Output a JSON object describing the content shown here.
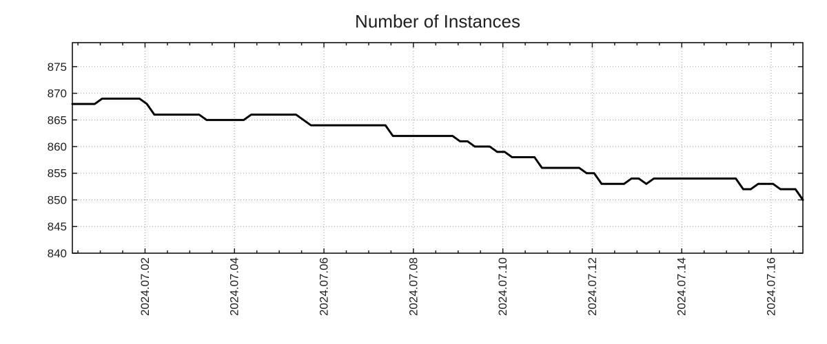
{
  "chart_data": {
    "type": "line",
    "title": "Number of Instances",
    "x_axis": {
      "epoch": "2024-06-30 00:00",
      "domain_days": [
        0.375,
        16.7083
      ],
      "major_ticks": [
        {
          "day": 2,
          "label": "2024.07.02"
        },
        {
          "day": 4,
          "label": "2024.07.04"
        },
        {
          "day": 6,
          "label": "2024.07.06"
        },
        {
          "day": 8,
          "label": "2024.07.08"
        },
        {
          "day": 10,
          "label": "2024.07.10"
        },
        {
          "day": 12,
          "label": "2024.07.12"
        },
        {
          "day": 14,
          "label": "2024.07.14"
        },
        {
          "day": 16,
          "label": "2024.07.16"
        }
      ],
      "minor_tick_step_days": 0.5,
      "labels_rotated_degrees": -90
    },
    "y_axis": {
      "ylim": [
        840,
        879.5
      ],
      "ticks": [
        840,
        845,
        850,
        855,
        860,
        865,
        870,
        875
      ]
    },
    "grid": {
      "style": "dotted",
      "vertical": true,
      "horizontal": true
    },
    "legend": "none",
    "series": [
      {
        "name": "instances",
        "color": "#000000",
        "line_width": 3,
        "points": [
          [
            "2024-06-30 09:00",
            868
          ],
          [
            "2024-06-30 21:00",
            868
          ],
          [
            "2024-07-01 01:00",
            869
          ],
          [
            "2024-07-01 21:00",
            869
          ],
          [
            "2024-07-02 01:00",
            868
          ],
          [
            "2024-07-02 05:00",
            866
          ],
          [
            "2024-07-03 05:00",
            866
          ],
          [
            "2024-07-03 09:00",
            865
          ],
          [
            "2024-07-04 05:00",
            865
          ],
          [
            "2024-07-04 09:00",
            866
          ],
          [
            "2024-07-05 09:00",
            866
          ],
          [
            "2024-07-05 13:00",
            865
          ],
          [
            "2024-07-05 17:00",
            864
          ],
          [
            "2024-07-07 09:00",
            864
          ],
          [
            "2024-07-07 13:00",
            862
          ],
          [
            "2024-07-08 21:00",
            862
          ],
          [
            "2024-07-09 01:00",
            861
          ],
          [
            "2024-07-09 05:00",
            861
          ],
          [
            "2024-07-09 09:00",
            860
          ],
          [
            "2024-07-09 17:00",
            860
          ],
          [
            "2024-07-09 21:00",
            859
          ],
          [
            "2024-07-10 01:00",
            859
          ],
          [
            "2024-07-10 05:00",
            858
          ],
          [
            "2024-07-10 17:00",
            858
          ],
          [
            "2024-07-10 21:00",
            856
          ],
          [
            "2024-07-11 17:00",
            856
          ],
          [
            "2024-07-11 21:00",
            855
          ],
          [
            "2024-07-12 01:00",
            855
          ],
          [
            "2024-07-12 05:00",
            853
          ],
          [
            "2024-07-12 17:00",
            853
          ],
          [
            "2024-07-12 21:00",
            854
          ],
          [
            "2024-07-13 01:00",
            854
          ],
          [
            "2024-07-13 05:00",
            853
          ],
          [
            "2024-07-13 09:00",
            854
          ],
          [
            "2024-07-15 05:00",
            854
          ],
          [
            "2024-07-15 09:00",
            852
          ],
          [
            "2024-07-15 13:00",
            852
          ],
          [
            "2024-07-15 17:00",
            853
          ],
          [
            "2024-07-16 01:00",
            853
          ],
          [
            "2024-07-16 05:00",
            852
          ],
          [
            "2024-07-16 13:00",
            852
          ],
          [
            "2024-07-16 17:00",
            850
          ]
        ]
      }
    ]
  },
  "styles": {
    "background": "#ffffff",
    "text_color": "#1f1f1f",
    "axis_color": "#000000",
    "tick_color": "#1a1a1a",
    "grid_color": "#999999",
    "line_color": "#000000"
  }
}
